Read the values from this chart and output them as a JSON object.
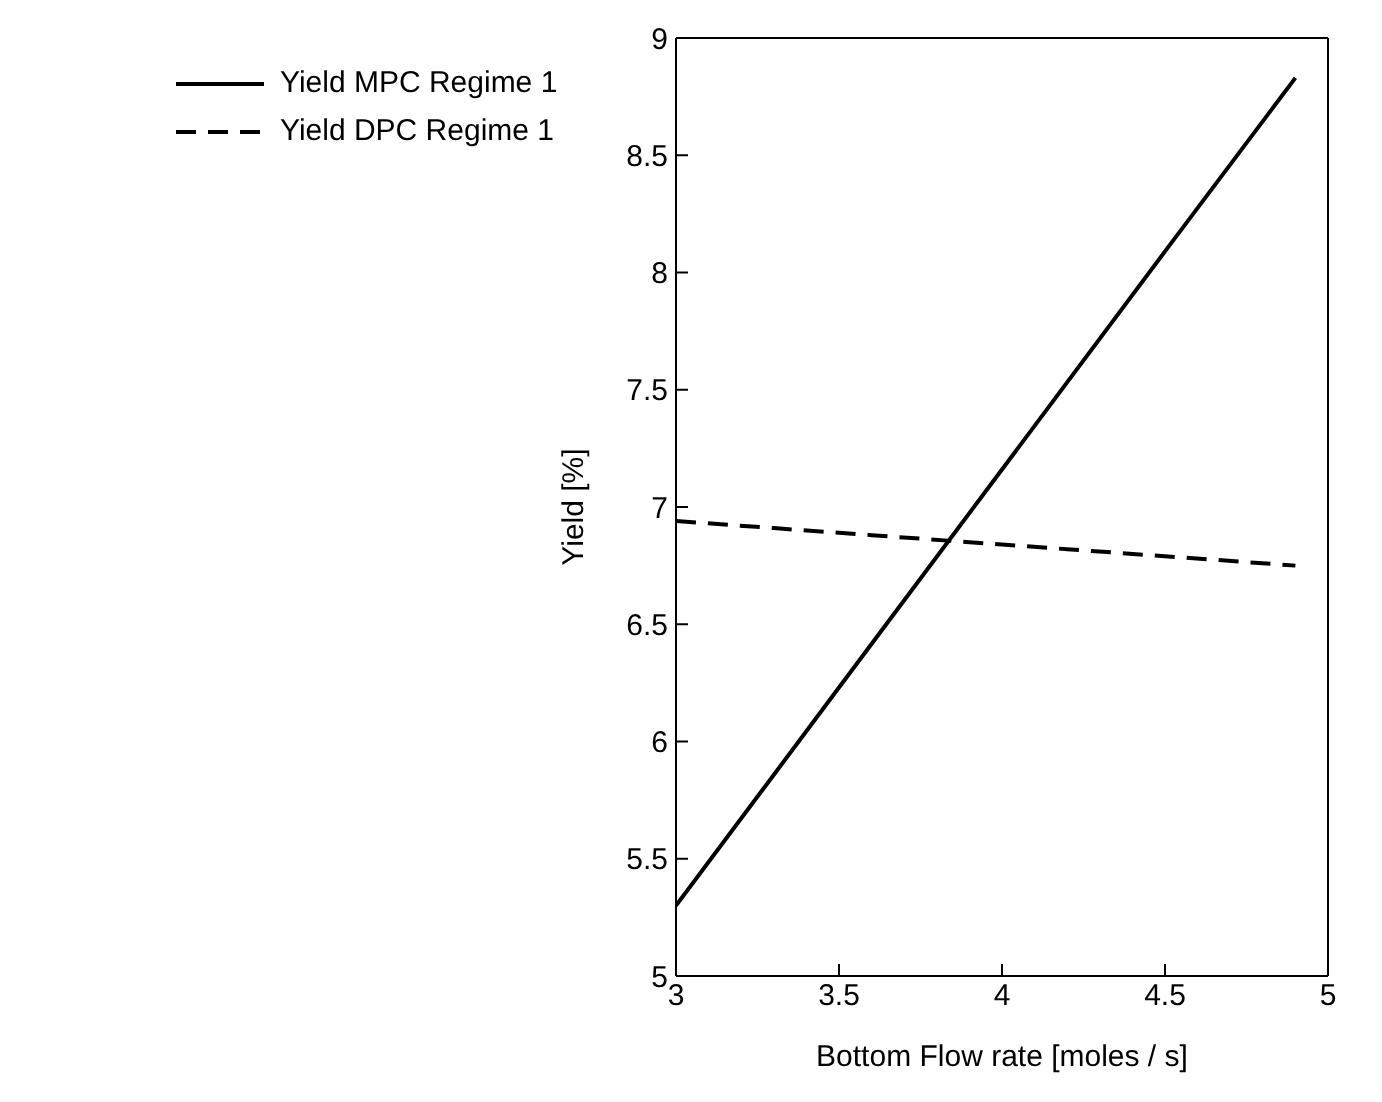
{
  "chart_data": {
    "type": "line",
    "xlabel": "Bottom Flow rate [moles / s]",
    "ylabel": "Yield [%]",
    "series": [
      {
        "name": "Yield MPC Regime 1",
        "color": "#000000",
        "line_style": "solid",
        "x": [
          3,
          3.5,
          4,
          4.5,
          4.9
        ],
        "values": [
          5.3,
          6.23,
          7.16,
          8.09,
          8.83
        ]
      },
      {
        "name": "Yield DPC Regime 1",
        "color": "#000000",
        "line_style": "dashed",
        "x": [
          3,
          3.3,
          3.6,
          3.9,
          4.2,
          4.5,
          4.9
        ],
        "values": [
          6.94,
          6.91,
          6.88,
          6.85,
          6.82,
          6.79,
          6.75
        ]
      }
    ],
    "xlim": [
      3,
      5
    ],
    "xticks": [
      3,
      3.5,
      4,
      4.5,
      5
    ],
    "ylim": [
      5,
      9
    ],
    "yticks": [
      5,
      5.5,
      6,
      6.5,
      7,
      7.5,
      8,
      8.5,
      9
    ],
    "grid": false,
    "legend": "top left",
    "marker": "none"
  }
}
